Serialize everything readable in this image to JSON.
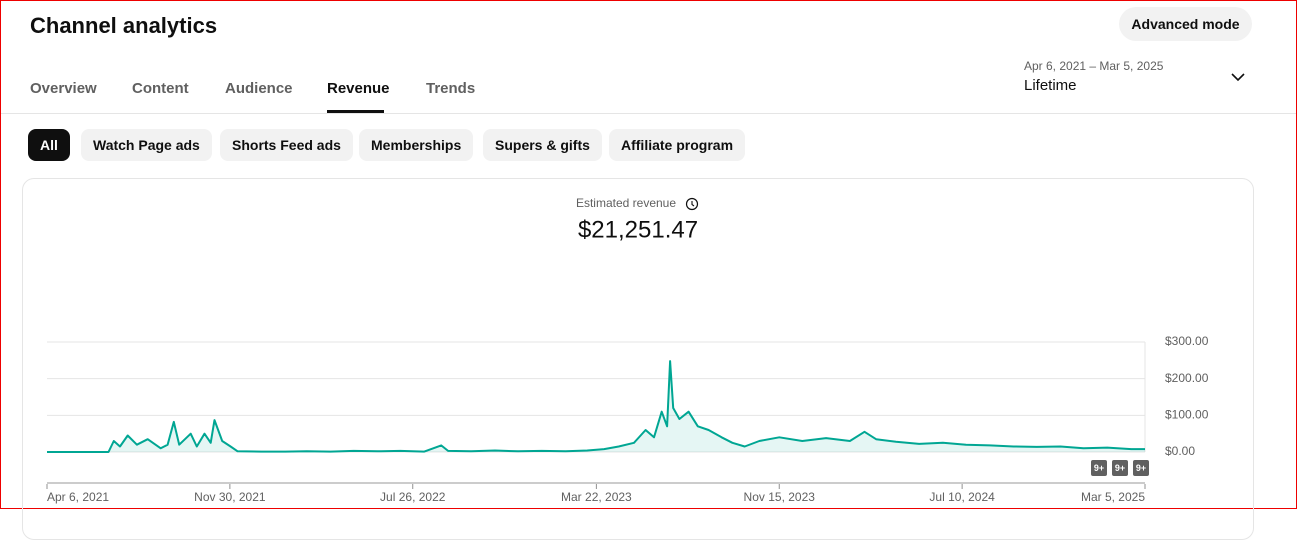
{
  "header": {
    "title": "Channel analytics",
    "advanced_button": "Advanced mode",
    "date_range": "Apr 6, 2021 – Mar 5, 2025",
    "period": "Lifetime"
  },
  "tabs": [
    "Overview",
    "Content",
    "Audience",
    "Revenue",
    "Trends"
  ],
  "active_tab": 3,
  "chips": [
    "All",
    "Watch Page ads",
    "Shorts Feed ads",
    "Memberships",
    "Supers & gifts",
    "Affiliate program"
  ],
  "active_chip": 0,
  "chart_data": {
    "type": "line",
    "title": "Estimated revenue",
    "total": "$21,251.47",
    "x": [
      "2021-04-06",
      "2021-05-06",
      "2021-06-05",
      "2021-06-25",
      "2021-07-02",
      "2021-07-10",
      "2021-07-20",
      "2021-08-01",
      "2021-08-15",
      "2021-09-01",
      "2021-09-10",
      "2021-09-18",
      "2021-09-25",
      "2021-10-10",
      "2021-10-18",
      "2021-10-28",
      "2021-11-05",
      "2021-11-10",
      "2021-11-20",
      "2021-12-01",
      "2021-12-10",
      "2022-01-10",
      "2022-02-10",
      "2022-03-10",
      "2022-04-10",
      "2022-05-10",
      "2022-06-10",
      "2022-07-10",
      "2022-08-10",
      "2022-09-01",
      "2022-09-10",
      "2022-10-10",
      "2022-11-10",
      "2022-12-10",
      "2023-01-10",
      "2023-02-10",
      "2023-03-10",
      "2023-04-01",
      "2023-04-20",
      "2023-05-10",
      "2023-05-25",
      "2023-06-05",
      "2023-06-15",
      "2023-06-22",
      "2023-06-26",
      "2023-06-30",
      "2023-07-08",
      "2023-07-20",
      "2023-08-01",
      "2023-08-15",
      "2023-09-01",
      "2023-09-15",
      "2023-10-01",
      "2023-10-20",
      "2023-11-15",
      "2023-12-15",
      "2024-01-15",
      "2024-02-15",
      "2024-03-05",
      "2024-03-20",
      "2024-04-15",
      "2024-05-15",
      "2024-06-15",
      "2024-07-15",
      "2024-08-15",
      "2024-09-15",
      "2024-10-15",
      "2024-11-15",
      "2024-12-15",
      "2025-01-15",
      "2025-02-15",
      "2025-03-05"
    ],
    "series": [
      {
        "name": "Estimated revenue",
        "color": "#00a693",
        "values": [
          0,
          0,
          0,
          0,
          30,
          15,
          45,
          20,
          35,
          10,
          20,
          82,
          20,
          50,
          15,
          50,
          25,
          87,
          30,
          15,
          2,
          1,
          1,
          2,
          1,
          3,
          2,
          3,
          1,
          18,
          3,
          2,
          4,
          2,
          3,
          2,
          4,
          8,
          15,
          25,
          60,
          40,
          110,
          70,
          248,
          120,
          90,
          110,
          70,
          60,
          40,
          25,
          15,
          30,
          40,
          30,
          38,
          30,
          55,
          35,
          28,
          22,
          25,
          20,
          18,
          15,
          14,
          15,
          10,
          12,
          8,
          8
        ]
      }
    ],
    "xlim": [
      "2021-04-06",
      "2025-03-05"
    ],
    "xticks": [
      {
        "value": "2021-04-06",
        "label": "Apr 6, 2021"
      },
      {
        "value": "2021-11-30",
        "label": "Nov 30, 2021"
      },
      {
        "value": "2022-07-26",
        "label": "Jul 26, 2022"
      },
      {
        "value": "2023-03-22",
        "label": "Mar 22, 2023"
      },
      {
        "value": "2023-11-15",
        "label": "Nov 15, 2023"
      },
      {
        "value": "2024-07-10",
        "label": "Jul 10, 2024"
      },
      {
        "value": "2025-03-05",
        "label": "Mar 5, 2025"
      }
    ],
    "ylim": [
      0,
      300
    ],
    "yticks": [
      {
        "value": 0,
        "label": "$0.00"
      },
      {
        "value": 100,
        "label": "$100.00"
      },
      {
        "value": 200,
        "label": "$200.00"
      },
      {
        "value": 300,
        "label": "$300.00"
      }
    ],
    "grid": true,
    "badges": [
      "9+",
      "9+",
      "9+"
    ]
  }
}
